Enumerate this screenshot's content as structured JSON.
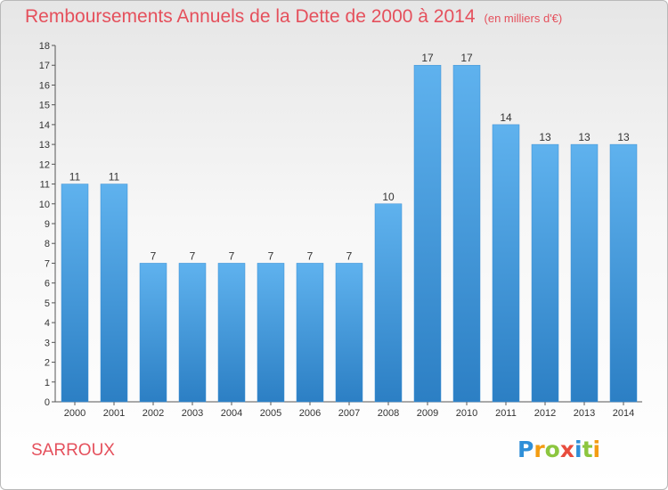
{
  "title": "Remboursements Annuels de la Dette de 2000 à 2014",
  "unit": "(en milliers d'€)",
  "place": "SARROUX",
  "logo": {
    "letters": [
      "P",
      "r",
      "o",
      "x",
      "i",
      "t",
      "i"
    ],
    "colors": [
      "#2f8fd8",
      "#f39c12",
      "#8cc63f",
      "#e84c3d",
      "#2f8fd8",
      "#8cc63f",
      "#f39c12"
    ]
  },
  "chart_data": {
    "type": "bar",
    "title": "Remboursements Annuels de la Dette de 2000 à 2014",
    "categories": [
      "2000",
      "2001",
      "2002",
      "2003",
      "2004",
      "2005",
      "2006",
      "2007",
      "2008",
      "2009",
      "2010",
      "2011",
      "2012",
      "2013",
      "2014"
    ],
    "values": [
      11,
      11,
      7,
      7,
      7,
      7,
      7,
      7,
      10,
      17,
      17,
      14,
      13,
      13,
      13
    ],
    "yticks": [
      0,
      1,
      2,
      3,
      4,
      5,
      6,
      7,
      8,
      9,
      10,
      11,
      12,
      13,
      14,
      15,
      16,
      17,
      18
    ],
    "ylim": [
      0,
      18
    ],
    "grid": false,
    "bar_color": "#4a9fe0"
  }
}
